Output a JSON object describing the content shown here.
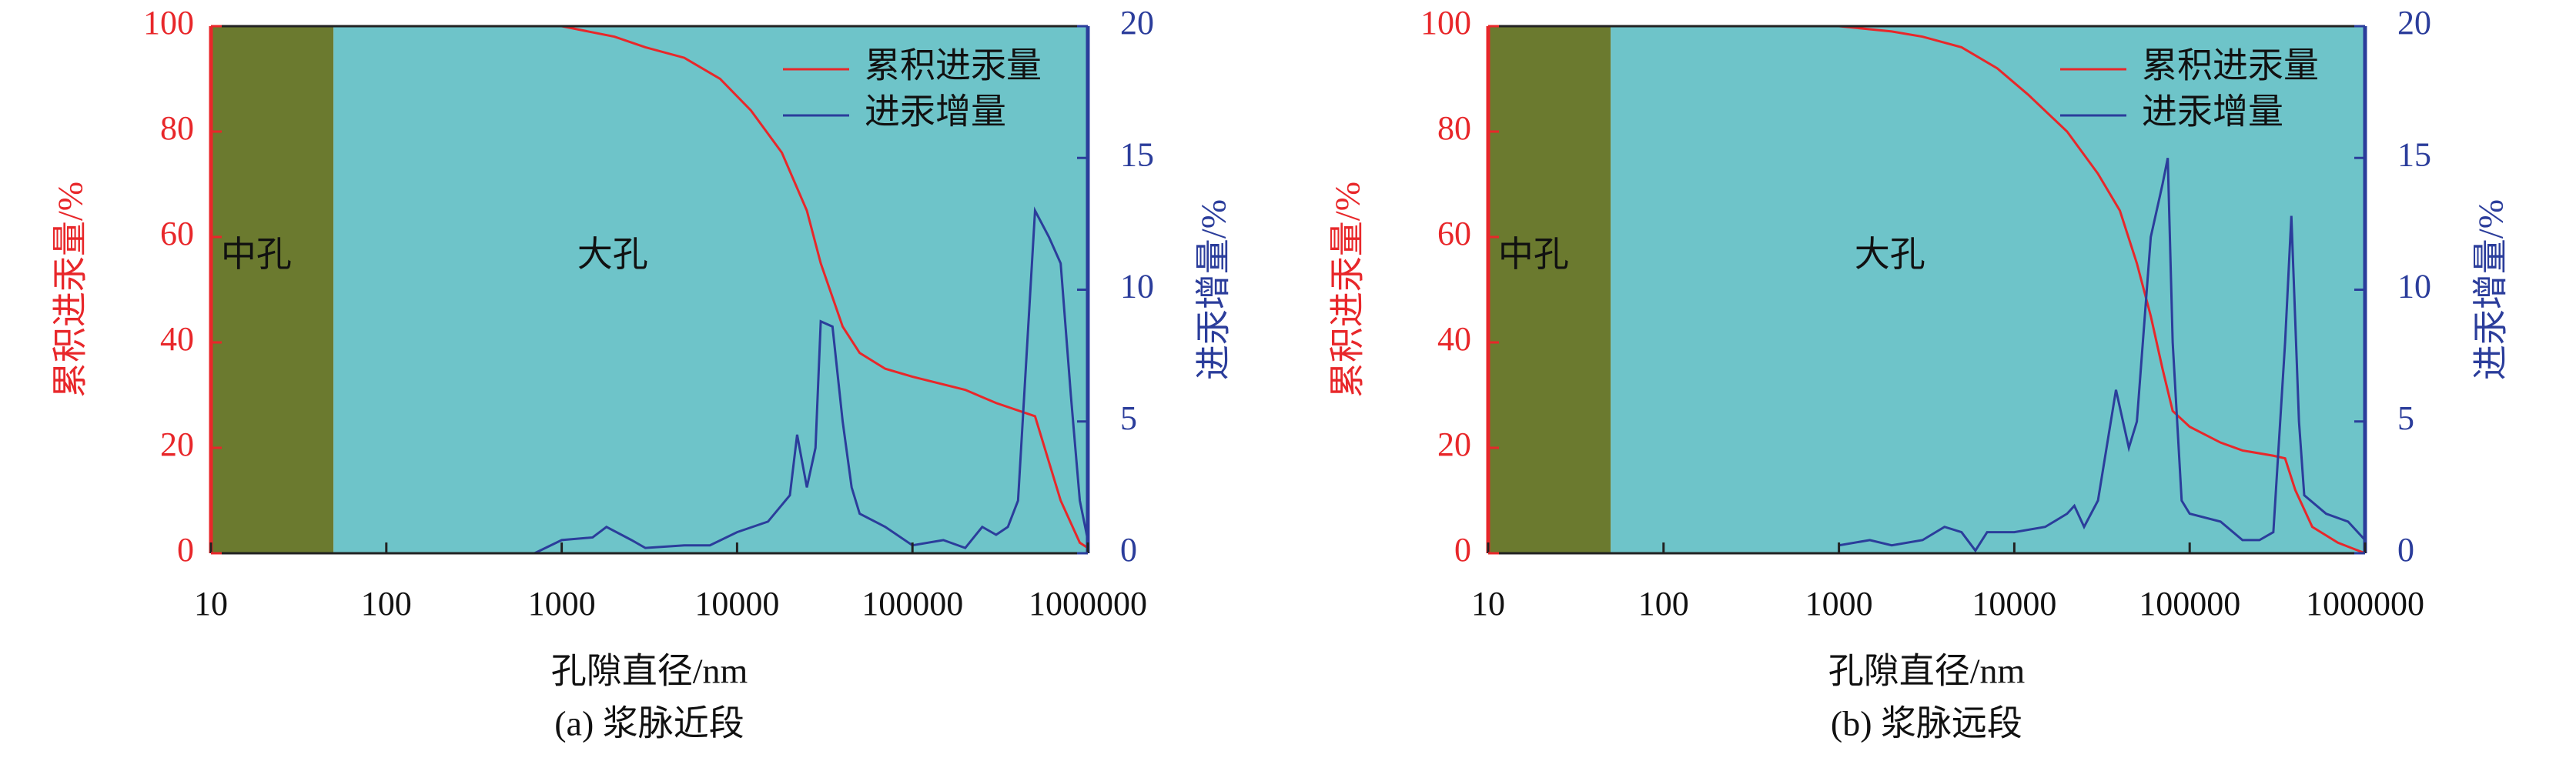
{
  "chart_data": [
    {
      "type": "line",
      "caption": "(a) 浆脉近段",
      "xlabel": "孔隙直径/nm",
      "ylabel": "累积进汞量/%",
      "y2label": "进汞增量/%",
      "xlog": true,
      "xlim": [
        10,
        1000000
      ],
      "xticks": [
        10,
        100,
        1000,
        10000,
        100000,
        1000000
      ],
      "ylim": [
        0,
        100
      ],
      "yticks": [
        0,
        20,
        40,
        60,
        80,
        100
      ],
      "y2lim": [
        0,
        20
      ],
      "y2ticks": [
        0,
        5,
        10,
        15,
        20
      ],
      "ycolor": "#e8272a",
      "y2color": "#2b3d9b",
      "legend": "upper right",
      "regions": [
        {
          "label": "中孔",
          "from": 10,
          "to": 50,
          "color": "#6b7a2f"
        },
        {
          "label": "大孔",
          "from": 50,
          "to": 1000000,
          "color": "#6ec4c9"
        }
      ],
      "series": [
        {
          "name": "累积进汞量",
          "color": "#e8272a",
          "x": [
            1000,
            2000,
            3000,
            5000,
            8000,
            12000,
            18000,
            25000,
            30000,
            40000,
            50000,
            70000,
            100000,
            200000,
            300000,
            500000,
            700000,
            900000,
            1000000
          ],
          "values": [
            100,
            98,
            96,
            94,
            90,
            84,
            76,
            65,
            55,
            43,
            38,
            35,
            33.5,
            31,
            28.5,
            26,
            10,
            2,
            1
          ]
        },
        {
          "name": "进汞增量",
          "color": "#2b3d9b",
          "axis": "y2",
          "x": [
            700,
            1000,
            1500,
            1800,
            2500,
            3000,
            5000,
            7000,
            10000,
            15000,
            20000,
            22000,
            25000,
            28000,
            30000,
            35000,
            40000,
            45000,
            50000,
            70000,
            100000,
            150000,
            200000,
            250000,
            300000,
            350000,
            400000,
            500000,
            600000,
            700000,
            800000,
            900000,
            1000000
          ],
          "values": [
            0,
            0.5,
            0.6,
            1,
            0.5,
            0.2,
            0.3,
            0.3,
            0.8,
            1.2,
            2.2,
            4.5,
            2.5,
            4,
            8.8,
            8.6,
            5,
            2.5,
            1.5,
            1,
            0.3,
            0.5,
            0.2,
            1,
            0.7,
            1,
            2,
            13,
            12,
            11,
            6,
            2,
            0.5
          ]
        }
      ]
    },
    {
      "type": "line",
      "caption": "(b) 浆脉远段",
      "xlabel": "孔隙直径/nm",
      "ylabel": "累积进汞量/%",
      "y2label": "进汞增量/%",
      "xlog": true,
      "xlim": [
        10,
        1000000
      ],
      "xticks": [
        10,
        100,
        1000,
        10000,
        100000,
        1000000
      ],
      "ylim": [
        0,
        100
      ],
      "yticks": [
        0,
        20,
        40,
        60,
        80,
        100
      ],
      "y2lim": [
        0,
        20
      ],
      "y2ticks": [
        0,
        5,
        10,
        15,
        20
      ],
      "ycolor": "#e8272a",
      "y2color": "#2b3d9b",
      "legend": "upper right",
      "regions": [
        {
          "label": "中孔",
          "from": 10,
          "to": 50,
          "color": "#6b7a2f"
        },
        {
          "label": "大孔",
          "from": 50,
          "to": 1000000,
          "color": "#6ec4c9"
        }
      ],
      "series": [
        {
          "name": "累积进汞量",
          "color": "#e8272a",
          "x": [
            1000,
            2000,
            3000,
            5000,
            8000,
            12000,
            20000,
            30000,
            40000,
            50000,
            60000,
            70000,
            80000,
            100000,
            150000,
            200000,
            300000,
            350000,
            400000,
            500000,
            700000,
            1000000
          ],
          "values": [
            100,
            99,
            98,
            96,
            92,
            87,
            80,
            72,
            65,
            55,
            45,
            35,
            27,
            24,
            21,
            19.5,
            18.5,
            18,
            12,
            5,
            2,
            0
          ]
        },
        {
          "name": "进汞增量",
          "color": "#2b3d9b",
          "axis": "y2",
          "x": [
            1000,
            1500,
            2000,
            3000,
            4000,
            5000,
            6000,
            7000,
            10000,
            15000,
            20000,
            22000,
            25000,
            30000,
            38000,
            45000,
            50000,
            60000,
            70000,
            75000,
            80000,
            90000,
            100000,
            150000,
            200000,
            250000,
            300000,
            350000,
            380000,
            420000,
            450000,
            600000,
            800000,
            1000000
          ],
          "values": [
            0.3,
            0.5,
            0.3,
            0.5,
            1,
            0.8,
            0.1,
            0.8,
            0.8,
            1,
            1.5,
            1.8,
            1,
            2,
            6.2,
            4,
            5,
            12,
            14,
            15,
            8,
            2,
            1.5,
            1.2,
            0.5,
            0.5,
            0.8,
            8,
            12.8,
            5,
            2.2,
            1.5,
            1.2,
            0.5
          ]
        }
      ]
    }
  ]
}
